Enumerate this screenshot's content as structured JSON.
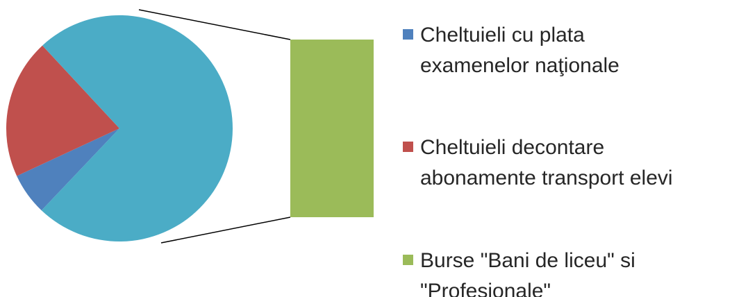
{
  "chart_data": {
    "type": "bar-of-pie",
    "series": [
      {
        "name": "Cheltuieli cu plata examenelor naţionale",
        "color": "#4f81bd",
        "values": [
          6
        ]
      },
      {
        "name": "Cheltuieli decontare abonamente transport elevi",
        "color": "#c0504d",
        "values": [
          20
        ]
      },
      {
        "name": "Burse \"Bani de liceu\" si \"Profesionale\"",
        "color": "#9bbb59",
        "values": [
          74
        ]
      }
    ],
    "other_color": "#4bacc6",
    "legend": "right"
  }
}
